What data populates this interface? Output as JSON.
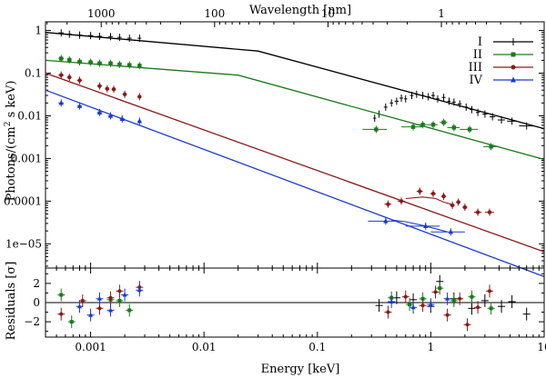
{
  "chart_data": {
    "type": "scatter",
    "title": "",
    "xlabel": "Energy [keV]",
    "x2label": "Wavelength [nm]",
    "ylabel": "Photons/(cm² s keV)",
    "ylabel_parts": [
      "Photons/(cm",
      "2",
      " s keV)"
    ],
    "residual_ylabel": "Residuals [σ]",
    "xscale": "log",
    "yscale": "log",
    "xlim": [
      0.0004,
      10
    ],
    "ylim": [
      2.7e-06,
      1.6
    ],
    "residual_ylim": [
      -3.6,
      3.6
    ],
    "x_ticks": [
      {
        "value": 0.001,
        "label": "0.001"
      },
      {
        "value": 0.01,
        "label": "0.01"
      },
      {
        "value": 0.1,
        "label": "0.1"
      },
      {
        "value": 1,
        "label": "1"
      },
      {
        "value": 10,
        "label": "10"
      }
    ],
    "wavelength_ticks": [
      {
        "energy_kev": 0.00124,
        "label": "1000"
      },
      {
        "energy_kev": 0.0124,
        "label": "100"
      },
      {
        "energy_kev": 0.124,
        "label": "10"
      },
      {
        "energy_kev": 1.24,
        "label": "1"
      }
    ],
    "y_ticks": [
      {
        "value": 1,
        "label": "1"
      },
      {
        "value": 0.1,
        "label": "0.1"
      },
      {
        "value": 0.01,
        "label": "0.01"
      },
      {
        "value": 0.001,
        "label": "0.001"
      },
      {
        "value": 0.0001,
        "label": "0.0001"
      },
      {
        "value": 1e-05,
        "label": "1e−05"
      }
    ],
    "residual_ticks": [
      {
        "value": 2,
        "label": "2"
      },
      {
        "value": 0,
        "label": "0"
      },
      {
        "value": -2,
        "label": "−2"
      }
    ],
    "legend_position": "top-right",
    "series": [
      {
        "name": "I",
        "color": "#000000",
        "marker": "plus",
        "model": [
          [
            0.0004,
            0.9
          ],
          [
            0.03,
            0.33
          ],
          [
            10,
            0.005
          ]
        ],
        "points": [
          {
            "x": 0.00055,
            "y": 0.88,
            "xerr": 3e-05
          },
          {
            "x": 0.00065,
            "y": 0.82,
            "xerr": 3e-05
          },
          {
            "x": 0.0008,
            "y": 0.78,
            "xerr": 4e-05
          },
          {
            "x": 0.001,
            "y": 0.76,
            "xerr": 5e-05
          },
          {
            "x": 0.0012,
            "y": 0.73,
            "xerr": 6e-05
          },
          {
            "x": 0.0015,
            "y": 0.72,
            "xerr": 7e-05
          },
          {
            "x": 0.0018,
            "y": 0.69,
            "xerr": 8e-05
          },
          {
            "x": 0.0022,
            "y": 0.66,
            "xerr": 0.0001
          },
          {
            "x": 0.0027,
            "y": 0.66,
            "xerr": 0.0001
          },
          {
            "x": 0.32,
            "y": 0.0088,
            "xerr": 0.01
          },
          {
            "x": 0.35,
            "y": 0.011,
            "xerr": 0.01
          },
          {
            "x": 0.4,
            "y": 0.016,
            "xerr": 0.015
          },
          {
            "x": 0.45,
            "y": 0.02,
            "xerr": 0.015
          },
          {
            "x": 0.5,
            "y": 0.022,
            "xerr": 0.02
          },
          {
            "x": 0.55,
            "y": 0.026,
            "xerr": 0.02
          },
          {
            "x": 0.6,
            "y": 0.025,
            "xerr": 0.02
          },
          {
            "x": 0.68,
            "y": 0.03,
            "xerr": 0.025
          },
          {
            "x": 0.75,
            "y": 0.032,
            "xerr": 0.025
          },
          {
            "x": 0.85,
            "y": 0.03,
            "xerr": 0.03
          },
          {
            "x": 0.95,
            "y": 0.028,
            "xerr": 0.035
          },
          {
            "x": 1.05,
            "y": 0.03,
            "xerr": 0.04
          },
          {
            "x": 1.15,
            "y": 0.025,
            "xerr": 0.04
          },
          {
            "x": 1.3,
            "y": 0.027,
            "xerr": 0.05
          },
          {
            "x": 1.45,
            "y": 0.022,
            "xerr": 0.05
          },
          {
            "x": 1.6,
            "y": 0.021,
            "xerr": 0.06
          },
          {
            "x": 1.8,
            "y": 0.019,
            "xerr": 0.07
          },
          {
            "x": 2.05,
            "y": 0.016,
            "xerr": 0.08
          },
          {
            "x": 2.3,
            "y": 0.014,
            "xerr": 0.1
          },
          {
            "x": 2.6,
            "y": 0.012,
            "xerr": 0.1
          },
          {
            "x": 3.0,
            "y": 0.011,
            "xerr": 0.15
          },
          {
            "x": 3.5,
            "y": 0.0095,
            "xerr": 0.2
          },
          {
            "x": 4.2,
            "y": 0.008,
            "xerr": 0.3
          },
          {
            "x": 5.2,
            "y": 0.0075,
            "xerr": 0.5
          },
          {
            "x": 7.0,
            "y": 0.0058,
            "xerr": 1.0
          }
        ],
        "residuals": [
          {
            "x": 1.2,
            "r": 2.2
          },
          {
            "x": 0.35,
            "r": -0.3
          },
          {
            "x": 0.5,
            "r": 0.5
          },
          {
            "x": 0.7,
            "r": 0.3
          },
          {
            "x": 1.0,
            "r": -0.4
          },
          {
            "x": 1.6,
            "r": 0.4
          },
          {
            "x": 2.3,
            "r": -0.6
          },
          {
            "x": 3.0,
            "r": 0.2
          },
          {
            "x": 4.2,
            "r": -0.4
          },
          {
            "x": 5.2,
            "r": 0.1
          },
          {
            "x": 7.0,
            "r": -1.2
          }
        ]
      },
      {
        "name": "II",
        "color": "#1a7a1a",
        "marker": "square",
        "model": [
          [
            0.0004,
            0.2
          ],
          [
            0.02,
            0.09
          ],
          [
            10,
            0.00095
          ]
        ],
        "points": [
          {
            "x": 0.00055,
            "y": 0.22,
            "xerr": 3e-05
          },
          {
            "x": 0.00065,
            "y": 0.205,
            "xerr": 3e-05
          },
          {
            "x": 0.0008,
            "y": 0.185,
            "xerr": 4e-05
          },
          {
            "x": 0.001,
            "y": 0.18,
            "xerr": 5e-05
          },
          {
            "x": 0.0012,
            "y": 0.17,
            "xerr": 6e-05
          },
          {
            "x": 0.0015,
            "y": 0.17,
            "xerr": 7e-05
          },
          {
            "x": 0.0018,
            "y": 0.16,
            "xerr": 8e-05
          },
          {
            "x": 0.0022,
            "y": 0.155,
            "xerr": 0.0001
          },
          {
            "x": 0.0027,
            "y": 0.15,
            "xerr": 0.0001
          },
          {
            "x": 0.33,
            "y": 0.0048,
            "xerr": 0.08
          },
          {
            "x": 0.7,
            "y": 0.0055,
            "xerr": 0.15
          },
          {
            "x": 0.85,
            "y": 0.0062,
            "xerr": 0.1
          },
          {
            "x": 1.05,
            "y": 0.0062,
            "xerr": 0.1
          },
          {
            "x": 1.3,
            "y": 0.007,
            "xerr": 0.1
          },
          {
            "x": 1.6,
            "y": 0.0053,
            "xerr": 0.2
          },
          {
            "x": 2.2,
            "y": 0.0048,
            "xerr": 0.4
          },
          {
            "x": 3.4,
            "y": 0.0019,
            "xerr": 0.5
          }
        ],
        "residuals": [
          {
            "x": 0.00055,
            "r": 0.8
          },
          {
            "x": 0.00068,
            "r": -2.0
          },
          {
            "x": 0.0015,
            "r": 0.3
          },
          {
            "x": 0.0018,
            "r": 0.2
          },
          {
            "x": 0.0022,
            "r": -0.8
          },
          {
            "x": 0.45,
            "r": 0.5
          },
          {
            "x": 0.65,
            "r": -0.2
          },
          {
            "x": 0.85,
            "r": 0.4
          },
          {
            "x": 1.2,
            "r": 1.5
          },
          {
            "x": 1.6,
            "r": 0.2
          },
          {
            "x": 2.3,
            "r": 0.6
          },
          {
            "x": 3.4,
            "r": -0.6
          }
        ]
      },
      {
        "name": "III",
        "color": "#8b1a1a",
        "marker": "circle",
        "model": [
          [
            0.0004,
            0.1
          ],
          [
            10,
            6.5e-06
          ]
        ],
        "bump": [
          [
            0.6,
            0.000115
          ],
          [
            0.85,
            0.000125
          ],
          [
            1.1,
            0.000115
          ],
          [
            1.3,
            9.5e-05
          ],
          [
            1.5,
            8.5e-05
          ]
        ],
        "points": [
          {
            "x": 0.00055,
            "y": 0.09,
            "xerr": 3e-05
          },
          {
            "x": 0.00065,
            "y": 0.08,
            "xerr": 3e-05
          },
          {
            "x": 0.0008,
            "y": 0.068,
            "xerr": 4e-05
          },
          {
            "x": 0.0012,
            "y": 0.05,
            "xerr": 6e-05
          },
          {
            "x": 0.0014,
            "y": 0.043,
            "xerr": 6e-05
          },
          {
            "x": 0.0016,
            "y": 0.042,
            "xerr": 7e-05
          },
          {
            "x": 0.002,
            "y": 0.032,
            "xerr": 9e-05
          },
          {
            "x": 0.0027,
            "y": 0.028,
            "xerr": 0.0001
          },
          {
            "x": 0.42,
            "y": 8.5e-05,
            "xerr": 0.03
          },
          {
            "x": 0.55,
            "y": 0.0001,
            "xerr": 0.04
          },
          {
            "x": 0.8,
            "y": 0.00017,
            "xerr": 0.05
          },
          {
            "x": 1.05,
            "y": 0.00015,
            "xerr": 0.06
          },
          {
            "x": 1.3,
            "y": 0.00013,
            "xerr": 0.07
          },
          {
            "x": 1.55,
            "y": 8e-05,
            "xerr": 0.08
          },
          {
            "x": 1.75,
            "y": 9.5e-05,
            "xerr": 0.08
          },
          {
            "x": 2.0,
            "y": 7.2e-05,
            "xerr": 0.1
          },
          {
            "x": 2.6,
            "y": 5.5e-05,
            "xerr": 0.2
          },
          {
            "x": 3.3,
            "y": 5.5e-05,
            "xerr": 0.3
          }
        ],
        "residuals": [
          {
            "x": 0.00055,
            "r": -1.2
          },
          {
            "x": 0.00085,
            "r": 0.2
          },
          {
            "x": 0.0012,
            "r": -0.6
          },
          {
            "x": 0.0015,
            "r": 0.5
          },
          {
            "x": 0.0018,
            "r": 1.2
          },
          {
            "x": 0.0027,
            "r": 1.6
          },
          {
            "x": 0.42,
            "r": -1.0
          },
          {
            "x": 0.6,
            "r": 0.6
          },
          {
            "x": 0.85,
            "r": -0.3
          },
          {
            "x": 1.1,
            "r": 1.1
          },
          {
            "x": 1.4,
            "r": -1.3
          },
          {
            "x": 1.8,
            "r": 0.4
          },
          {
            "x": 2.1,
            "r": -2.3
          },
          {
            "x": 2.6,
            "r": -0.5
          },
          {
            "x": 3.3,
            "r": 1.2
          }
        ]
      },
      {
        "name": "IV",
        "color": "#1a3acc",
        "marker": "triangle",
        "model": [
          [
            0.0004,
            0.04
          ],
          [
            10,
            1.7e-06
          ]
        ],
        "bump": [
          [
            0.45,
            3.6e-05
          ],
          [
            0.6,
            3.3e-05
          ],
          [
            0.9,
            2.6e-05
          ],
          [
            1.4,
            1.9e-05
          ]
        ],
        "points": [
          {
            "x": 0.00055,
            "y": 0.02,
            "xerr": 3e-05
          },
          {
            "x": 0.0008,
            "y": 0.017,
            "xerr": 4e-05
          },
          {
            "x": 0.0012,
            "y": 0.012,
            "xerr": 6e-05
          },
          {
            "x": 0.0015,
            "y": 0.01,
            "xerr": 7e-05
          },
          {
            "x": 0.0019,
            "y": 0.0085,
            "xerr": 9e-05
          },
          {
            "x": 0.0027,
            "y": 0.0075,
            "xerr": 0.0001
          },
          {
            "x": 0.4,
            "y": 3.4e-05,
            "xerr": 0.12
          },
          {
            "x": 0.9,
            "y": 2.6e-05,
            "xerr": 0.3
          },
          {
            "x": 1.5,
            "y": 1.9e-05,
            "xerr": 0.5
          }
        ],
        "residuals": [
          {
            "x": 0.0008,
            "r": -0.4
          },
          {
            "x": 0.001,
            "r": -1.3
          },
          {
            "x": 0.0012,
            "r": 0.4
          },
          {
            "x": 0.0015,
            "r": -0.8
          },
          {
            "x": 0.002,
            "r": 0.8
          },
          {
            "x": 0.0027,
            "r": 1.3
          },
          {
            "x": 0.45,
            "r": 0.1
          },
          {
            "x": 0.7,
            "r": -0.5
          },
          {
            "x": 1.0,
            "r": -0.2
          },
          {
            "x": 1.4,
            "r": 0.4
          }
        ]
      }
    ]
  }
}
